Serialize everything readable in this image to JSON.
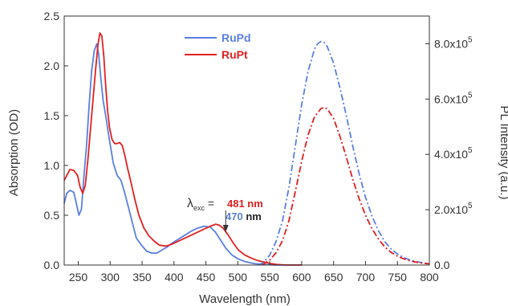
{
  "chart_data": {
    "type": "line",
    "xlabel": "Wavelength (nm)",
    "ylabel_left": "Absorption (OD)",
    "ylabel_right": "PL Intensity (a.u.)",
    "xlim": [
      228,
      800
    ],
    "ylim_left": [
      0,
      2.5
    ],
    "ylim_right": [
      0,
      900000
    ],
    "x_ticks": [
      {
        "value": 250,
        "label": "250"
      },
      {
        "value": 300,
        "label": "300"
      },
      {
        "value": 350,
        "label": "350"
      },
      {
        "value": 400,
        "label": "400"
      },
      {
        "value": 450,
        "label": "450"
      },
      {
        "value": 500,
        "label": "500"
      },
      {
        "value": 550,
        "label": "550"
      },
      {
        "value": 600,
        "label": "600"
      },
      {
        "value": 650,
        "label": "650"
      },
      {
        "value": 700,
        "label": "700"
      },
      {
        "value": 750,
        "label": "750"
      },
      {
        "value": 800,
        "label": "800"
      }
    ],
    "y_left_ticks": [
      {
        "value": 0,
        "label": "0.0"
      },
      {
        "value": 0.5,
        "label": "0.5"
      },
      {
        "value": 1.0,
        "label": "1.0"
      },
      {
        "value": 1.5,
        "label": "1.5"
      },
      {
        "value": 2.0,
        "label": "2.0"
      },
      {
        "value": 2.5,
        "label": "2.5"
      }
    ],
    "y_right_ticks": [
      {
        "value": 0,
        "base": "0.0",
        "exp": ""
      },
      {
        "value": 200000,
        "base": "2.0x10",
        "exp": "5"
      },
      {
        "value": 400000,
        "base": "4.0x10",
        "exp": "5"
      },
      {
        "value": 600000,
        "base": "6.0x10",
        "exp": "5"
      },
      {
        "value": 800000,
        "base": "8.0x10",
        "exp": "5"
      }
    ],
    "legend": [
      {
        "label": "RuPd",
        "color": "#5b7fe0"
      },
      {
        "label": "RuPt",
        "color": "#e02020"
      }
    ],
    "annotation": {
      "lambda": "λ",
      "subscript": "exc",
      "equals": " =",
      "value_pt": "481 nm",
      "value_pd": "470",
      "unit_pd": " nm",
      "arrow_x": 481
    },
    "series": [
      {
        "name": "RuPd",
        "kind": "absorption",
        "axis": "left",
        "color": "#5b7fe0",
        "dash": "solid",
        "points": [
          [
            228,
            0.62
          ],
          [
            232,
            0.72
          ],
          [
            237,
            0.75
          ],
          [
            243,
            0.73
          ],
          [
            247,
            0.62
          ],
          [
            251,
            0.5
          ],
          [
            255,
            0.56
          ],
          [
            259,
            0.9
          ],
          [
            263,
            1.2
          ],
          [
            267,
            1.6
          ],
          [
            271,
            1.95
          ],
          [
            275,
            2.15
          ],
          [
            279,
            2.22
          ],
          [
            282,
            2.12
          ],
          [
            285,
            1.9
          ],
          [
            289,
            1.65
          ],
          [
            293,
            1.5
          ],
          [
            299,
            1.25
          ],
          [
            305,
            1.02
          ],
          [
            311,
            0.9
          ],
          [
            317,
            0.85
          ],
          [
            323,
            0.72
          ],
          [
            329,
            0.57
          ],
          [
            335,
            0.42
          ],
          [
            341,
            0.27
          ],
          [
            349,
            0.2
          ],
          [
            357,
            0.14
          ],
          [
            365,
            0.12
          ],
          [
            373,
            0.12
          ],
          [
            381,
            0.15
          ],
          [
            389,
            0.18
          ],
          [
            397,
            0.22
          ],
          [
            407,
            0.26
          ],
          [
            417,
            0.3
          ],
          [
            427,
            0.34
          ],
          [
            437,
            0.37
          ],
          [
            447,
            0.39
          ],
          [
            457,
            0.38
          ],
          [
            465,
            0.33
          ],
          [
            473,
            0.25
          ],
          [
            481,
            0.17
          ],
          [
            491,
            0.1
          ],
          [
            501,
            0.06
          ],
          [
            511,
            0.035
          ],
          [
            525,
            0.015
          ],
          [
            541,
            0.005
          ],
          [
            560,
            0
          ],
          [
            600,
            0
          ]
        ]
      },
      {
        "name": "RuPt",
        "kind": "absorption",
        "axis": "left",
        "color": "#e02020",
        "dash": "solid",
        "points": [
          [
            228,
            0.85
          ],
          [
            232,
            0.9
          ],
          [
            237,
            0.96
          ],
          [
            243,
            0.95
          ],
          [
            249,
            0.9
          ],
          [
            253,
            0.78
          ],
          [
            257,
            0.72
          ],
          [
            261,
            0.8
          ],
          [
            265,
            1.05
          ],
          [
            269,
            1.35
          ],
          [
            273,
            1.65
          ],
          [
            277,
            1.95
          ],
          [
            281,
            2.22
          ],
          [
            284,
            2.33
          ],
          [
            287,
            2.3
          ],
          [
            290,
            2.1
          ],
          [
            293,
            1.8
          ],
          [
            296,
            1.55
          ],
          [
            299,
            1.38
          ],
          [
            303,
            1.26
          ],
          [
            307,
            1.22
          ],
          [
            311,
            1.22
          ],
          [
            315,
            1.23
          ],
          [
            319,
            1.2
          ],
          [
            323,
            1.1
          ],
          [
            327,
            0.98
          ],
          [
            333,
            0.82
          ],
          [
            339,
            0.65
          ],
          [
            345,
            0.5
          ],
          [
            353,
            0.37
          ],
          [
            361,
            0.29
          ],
          [
            369,
            0.24
          ],
          [
            377,
            0.2
          ],
          [
            387,
            0.19
          ],
          [
            397,
            0.21
          ],
          [
            407,
            0.24
          ],
          [
            417,
            0.27
          ],
          [
            427,
            0.3
          ],
          [
            437,
            0.33
          ],
          [
            447,
            0.36
          ],
          [
            457,
            0.39
          ],
          [
            465,
            0.41
          ],
          [
            471,
            0.4
          ],
          [
            477,
            0.37
          ],
          [
            485,
            0.3
          ],
          [
            493,
            0.22
          ],
          [
            501,
            0.15
          ],
          [
            511,
            0.1
          ],
          [
            521,
            0.07
          ],
          [
            531,
            0.045
          ],
          [
            541,
            0.03
          ],
          [
            551,
            0.015
          ],
          [
            561,
            0.006
          ],
          [
            575,
            0
          ],
          [
            600,
            0
          ]
        ]
      },
      {
        "name": "RuPd",
        "kind": "emission",
        "axis": "right",
        "color": "#5b7fe0",
        "dash": "dashdot",
        "points": [
          [
            532,
            0
          ],
          [
            540,
            8000
          ],
          [
            550,
            36000
          ],
          [
            560,
            86000
          ],
          [
            570,
            160000
          ],
          [
            580,
            280000
          ],
          [
            590,
            430000
          ],
          [
            600,
            580000
          ],
          [
            610,
            700000
          ],
          [
            620,
            780000
          ],
          [
            625,
            800000
          ],
          [
            630,
            808000
          ],
          [
            635,
            805000
          ],
          [
            640,
            790000
          ],
          [
            650,
            730000
          ],
          [
            660,
            640000
          ],
          [
            670,
            540000
          ],
          [
            680,
            430000
          ],
          [
            690,
            330000
          ],
          [
            700,
            245000
          ],
          [
            710,
            178000
          ],
          [
            720,
            125000
          ],
          [
            730,
            85000
          ],
          [
            740,
            58000
          ],
          [
            750,
            40000
          ],
          [
            760,
            27000
          ],
          [
            770,
            18000
          ],
          [
            780,
            12000
          ],
          [
            790,
            8000
          ],
          [
            800,
            5000
          ]
        ]
      },
      {
        "name": "RuPt",
        "kind": "emission",
        "axis": "right",
        "color": "#e02020",
        "dash": "dashdot",
        "points": [
          [
            538,
            0
          ],
          [
            550,
            18000
          ],
          [
            560,
            45000
          ],
          [
            570,
            88000
          ],
          [
            580,
            160000
          ],
          [
            590,
            265000
          ],
          [
            600,
            375000
          ],
          [
            610,
            470000
          ],
          [
            620,
            535000
          ],
          [
            630,
            565000
          ],
          [
            635,
            570000
          ],
          [
            640,
            565000
          ],
          [
            650,
            530000
          ],
          [
            660,
            465000
          ],
          [
            670,
            390000
          ],
          [
            680,
            310000
          ],
          [
            690,
            240000
          ],
          [
            700,
            180000
          ],
          [
            710,
            132000
          ],
          [
            720,
            95000
          ],
          [
            730,
            66000
          ],
          [
            740,
            46000
          ],
          [
            750,
            32000
          ],
          [
            760,
            22000
          ],
          [
            770,
            15000
          ],
          [
            780,
            10000
          ],
          [
            790,
            6500
          ],
          [
            800,
            4500
          ]
        ]
      }
    ]
  }
}
